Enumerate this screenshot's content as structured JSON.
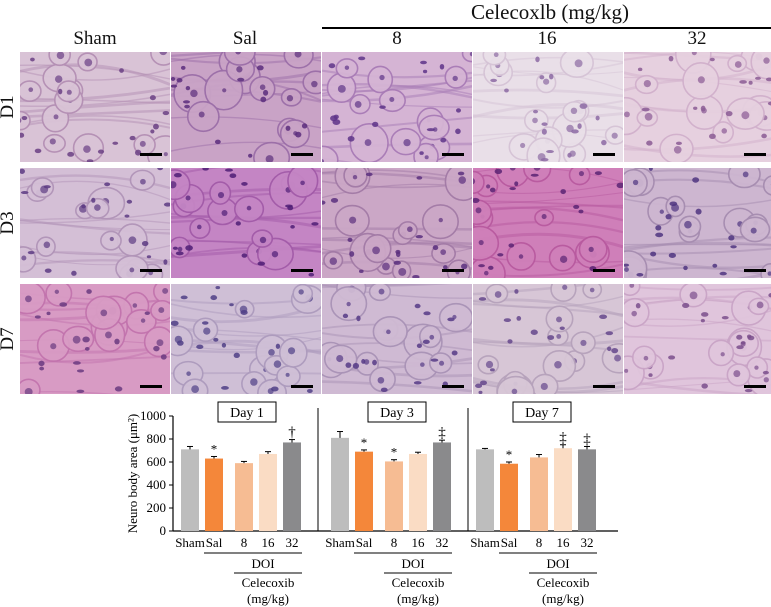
{
  "figure": {
    "header": {
      "group_title": "Celecoxlb (mg/kg)",
      "columns": [
        "Sham",
        "Sal",
        "8",
        "16",
        "32"
      ]
    },
    "rows": [
      "D1",
      "D3",
      "D7"
    ],
    "panels": [
      {
        "row": "D1",
        "col": "Sham",
        "base": "#d9c3d6",
        "accent": "#b48fb4",
        "nuc": "#6a3f84"
      },
      {
        "row": "D1",
        "col": "Sal",
        "base": "#c9a3c6",
        "accent": "#9b6ea8",
        "nuc": "#5b2d7c"
      },
      {
        "row": "D1",
        "col": "8",
        "base": "#d5b4d4",
        "accent": "#a87bb6",
        "nuc": "#5e3488"
      },
      {
        "row": "D1",
        "col": "16",
        "base": "#e9dfe8",
        "accent": "#d5c3d6",
        "nuc": "#8c6aa3"
      },
      {
        "row": "D1",
        "col": "32",
        "base": "#e6d0df",
        "accent": "#d1b0cc",
        "nuc": "#8a5a94"
      },
      {
        "row": "D3",
        "col": "Sham",
        "base": "#d4bfd6",
        "accent": "#b194b8",
        "nuc": "#5c3a82"
      },
      {
        "row": "D3",
        "col": "Sal",
        "base": "#c485c4",
        "accent": "#a25aa8",
        "nuc": "#4f1d76"
      },
      {
        "row": "D3",
        "col": "8",
        "base": "#cba7c6",
        "accent": "#a27aa6",
        "nuc": "#5b2f7e"
      },
      {
        "row": "D3",
        "col": "16",
        "base": "#cf7fb9",
        "accent": "#b85a9f",
        "nuc": "#5a2373"
      },
      {
        "row": "D3",
        "col": "32",
        "base": "#cdb6d0",
        "accent": "#a68cb0",
        "nuc": "#4f3580"
      },
      {
        "row": "D7",
        "col": "Sham",
        "base": "#d89bc4",
        "accent": "#c273ad",
        "nuc": "#6a3a80"
      },
      {
        "row": "D7",
        "col": "Sal",
        "base": "#cfbfd6",
        "accent": "#ad9bbd",
        "nuc": "#4f3e86"
      },
      {
        "row": "D7",
        "col": "8",
        "base": "#cfbad3",
        "accent": "#a992b6",
        "nuc": "#563a86"
      },
      {
        "row": "D7",
        "col": "16",
        "base": "#d7c6d6",
        "accent": "#b6a2bb",
        "nuc": "#65478c"
      },
      {
        "row": "D7",
        "col": "32",
        "base": "#e0c5dc",
        "accent": "#c9a4c6",
        "nuc": "#7a4d8c"
      }
    ]
  },
  "chart_data": {
    "type": "bar",
    "ylabel": "Neuro body area (μm²)",
    "ylim": [
      0,
      1000
    ],
    "yticks": [
      0,
      200,
      400,
      600,
      800,
      1000
    ],
    "categories": [
      "Sham",
      "Sal",
      "8",
      "16",
      "32"
    ],
    "colors": [
      "#bdbdbd",
      "#f4873a",
      "#f6bc93",
      "#fadcc4",
      "#8a8a8c"
    ],
    "panels": [
      {
        "title": "Day 1",
        "values": [
          710,
          630,
          590,
          670,
          770
        ],
        "errors": [
          25,
          18,
          15,
          20,
          25
        ],
        "marks": [
          "",
          "*",
          "",
          "",
          "†"
        ]
      },
      {
        "title": "Day 3",
        "values": [
          810,
          690,
          605,
          670,
          770
        ],
        "errors": [
          55,
          15,
          15,
          15,
          20
        ],
        "marks": [
          "",
          "*",
          "*",
          "",
          "‡"
        ]
      },
      {
        "title": "Day 7",
        "values": [
          710,
          585,
          640,
          720,
          710
        ],
        "errors": [
          8,
          15,
          25,
          30,
          25
        ],
        "marks": [
          "",
          "*",
          "",
          "‡",
          "‡"
        ]
      }
    ],
    "group_labels": {
      "doi": "DOI",
      "drug": "Celecoxib",
      "unit": "(mg/kg)"
    }
  }
}
